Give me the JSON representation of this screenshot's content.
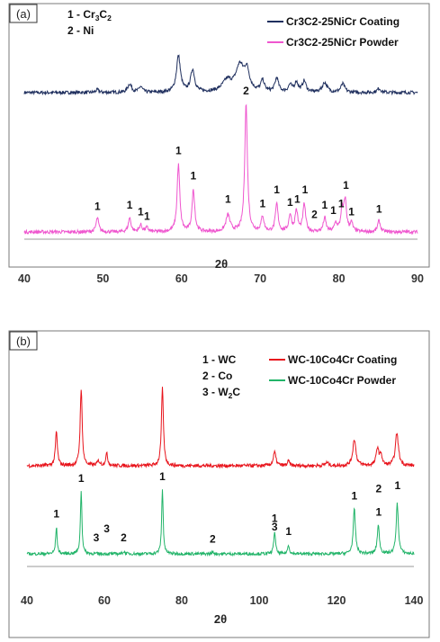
{
  "chart_data": [
    {
      "type": "line",
      "panel_label": "(a)",
      "xlabel": "2θ",
      "xlim": [
        40,
        90
      ],
      "xticks": [
        "40",
        "50",
        "60",
        "70",
        "80",
        "90"
      ],
      "legend_position": "top-right",
      "grid": false,
      "y_axis_visible": false,
      "key": [
        {
          "code": "1 - ",
          "main": "Cr",
          "sub1": "3",
          "mid": "C",
          "sub2": "2"
        },
        {
          "code": "2 - ",
          "main": "Ni",
          "sub1": "",
          "mid": "",
          "sub2": ""
        }
      ],
      "series": [
        {
          "name": "Cr3C2-25NiCr Coating",
          "color": "#1f2f5e",
          "baseline": 0.0,
          "noise": 0.012,
          "peaks": [
            {
              "x": 49.3,
              "h": 0.02,
              "w": 0.35
            },
            {
              "x": 53.4,
              "h": 0.06,
              "w": 0.45
            },
            {
              "x": 54.8,
              "h": 0.04,
              "w": 0.4
            },
            {
              "x": 59.6,
              "h": 0.26,
              "w": 0.45
            },
            {
              "x": 61.4,
              "h": 0.16,
              "w": 0.45
            },
            {
              "x": 65.8,
              "h": 0.08,
              "w": 1.1
            },
            {
              "x": 67.4,
              "h": 0.18,
              "w": 0.9
            },
            {
              "x": 68.3,
              "h": 0.14,
              "w": 0.6
            },
            {
              "x": 70.3,
              "h": 0.08,
              "w": 0.4
            },
            {
              "x": 72.1,
              "h": 0.1,
              "w": 0.4
            },
            {
              "x": 73.8,
              "h": 0.05,
              "w": 0.4
            },
            {
              "x": 74.6,
              "h": 0.07,
              "w": 0.4
            },
            {
              "x": 75.6,
              "h": 0.08,
              "w": 0.4
            },
            {
              "x": 78.2,
              "h": 0.07,
              "w": 0.55
            },
            {
              "x": 80.5,
              "h": 0.06,
              "w": 0.45
            },
            {
              "x": 85.1,
              "h": 0.03,
              "w": 0.4
            }
          ]
        },
        {
          "name": "Cr3C2-25NiCr Powder",
          "color": "#ef56cf",
          "baseline": 0.0,
          "noise": 0.012,
          "peaks": [
            {
              "x": 49.3,
              "h": 0.1,
              "w": 0.3
            },
            {
              "x": 53.4,
              "h": 0.1,
              "w": 0.3
            },
            {
              "x": 54.8,
              "h": 0.05,
              "w": 0.3
            },
            {
              "x": 55.6,
              "h": 0.03,
              "w": 0.3
            },
            {
              "x": 59.6,
              "h": 0.48,
              "w": 0.3
            },
            {
              "x": 61.5,
              "h": 0.3,
              "w": 0.3
            },
            {
              "x": 65.9,
              "h": 0.12,
              "w": 0.45
            },
            {
              "x": 68.2,
              "h": 0.92,
              "w": 0.3
            },
            {
              "x": 70.3,
              "h": 0.11,
              "w": 0.3
            },
            {
              "x": 72.1,
              "h": 0.2,
              "w": 0.3
            },
            {
              "x": 73.8,
              "h": 0.12,
              "w": 0.3
            },
            {
              "x": 74.6,
              "h": 0.15,
              "w": 0.3
            },
            {
              "x": 75.6,
              "h": 0.2,
              "w": 0.3
            },
            {
              "x": 78.2,
              "h": 0.1,
              "w": 0.3
            },
            {
              "x": 79.6,
              "h": 0.06,
              "w": 0.3
            },
            {
              "x": 80.4,
              "h": 0.14,
              "w": 0.3
            },
            {
              "x": 80.8,
              "h": 0.22,
              "w": 0.3
            },
            {
              "x": 81.6,
              "h": 0.06,
              "w": 0.3
            },
            {
              "x": 85.1,
              "h": 0.08,
              "w": 0.3
            }
          ]
        }
      ],
      "peak_labels": [
        {
          "x": 49.3,
          "text": "1",
          "pos": 0.12
        },
        {
          "x": 53.4,
          "text": "1",
          "pos": 0.13
        },
        {
          "x": 54.8,
          "text": "1",
          "pos": 0.08
        },
        {
          "x": 55.6,
          "text": "1",
          "pos": 0.05
        },
        {
          "x": 59.6,
          "text": "1",
          "pos": 0.52
        },
        {
          "x": 61.5,
          "text": "1",
          "pos": 0.34
        },
        {
          "x": 65.9,
          "text": "1",
          "pos": 0.17
        },
        {
          "x": 68.2,
          "text": "2",
          "pos": 0.95
        },
        {
          "x": 70.3,
          "text": "1",
          "pos": 0.14
        },
        {
          "x": 72.1,
          "text": "1",
          "pos": 0.24
        },
        {
          "x": 73.8,
          "text": "1",
          "pos": 0.15
        },
        {
          "x": 74.7,
          "text": "1",
          "pos": 0.17
        },
        {
          "x": 75.7,
          "text": "1",
          "pos": 0.24
        },
        {
          "x": 76.9,
          "text": "2",
          "pos": 0.06
        },
        {
          "x": 78.2,
          "text": "1",
          "pos": 0.13
        },
        {
          "x": 79.3,
          "text": "1",
          "pos": 0.09
        },
        {
          "x": 80.3,
          "text": "1",
          "pos": 0.14
        },
        {
          "x": 80.9,
          "text": "1",
          "pos": 0.27
        },
        {
          "x": 81.6,
          "text": "1",
          "pos": 0.08
        },
        {
          "x": 85.1,
          "text": "1",
          "pos": 0.1
        }
      ]
    },
    {
      "type": "line",
      "panel_label": "(b)",
      "xlabel": "2θ",
      "xlim": [
        40,
        140
      ],
      "xticks": [
        "40",
        "60",
        "80",
        "100",
        "120",
        "140"
      ],
      "legend_position": "top-right",
      "grid": false,
      "y_axis_visible": false,
      "key": [
        {
          "code": "1 - ",
          "main": "WC",
          "sub1": "",
          "mid": "",
          "sub2": ""
        },
        {
          "code": "2 - ",
          "main": "Co",
          "sub1": "",
          "mid": "",
          "sub2": ""
        },
        {
          "code": "3 - ",
          "main": "W",
          "sub1": "2",
          "mid": "C",
          "sub2": ""
        }
      ],
      "series": [
        {
          "name": "WC-10Co4Cr Coating",
          "color": "#e8141c",
          "baseline": 0.0,
          "noise": 0.012,
          "peaks": [
            {
              "x": 47.6,
              "h": 0.23,
              "w": 0.45
            },
            {
              "x": 54.0,
              "h": 0.52,
              "w": 0.45
            },
            {
              "x": 58.5,
              "h": 0.03,
              "w": 0.6
            },
            {
              "x": 60.6,
              "h": 0.08,
              "w": 0.5
            },
            {
              "x": 75.0,
              "h": 0.52,
              "w": 0.45
            },
            {
              "x": 104.0,
              "h": 0.09,
              "w": 0.6
            },
            {
              "x": 107.6,
              "h": 0.03,
              "w": 0.5
            },
            {
              "x": 117.5,
              "h": 0.02,
              "w": 0.8
            },
            {
              "x": 124.6,
              "h": 0.18,
              "w": 0.7
            },
            {
              "x": 130.6,
              "h": 0.12,
              "w": 0.6
            },
            {
              "x": 131.5,
              "h": 0.07,
              "w": 0.5
            },
            {
              "x": 135.6,
              "h": 0.22,
              "w": 0.7
            }
          ]
        },
        {
          "name": "WC-10Co4Cr Powder",
          "color": "#22b469",
          "baseline": 0.0,
          "noise": 0.01,
          "peaks": [
            {
              "x": 47.6,
              "h": 0.18,
              "w": 0.35
            },
            {
              "x": 54.0,
              "h": 0.42,
              "w": 0.35
            },
            {
              "x": 65.0,
              "h": 0.015,
              "w": 0.5
            },
            {
              "x": 75.0,
              "h": 0.43,
              "w": 0.35
            },
            {
              "x": 88.0,
              "h": 0.01,
              "w": 0.5
            },
            {
              "x": 104.0,
              "h": 0.15,
              "w": 0.4
            },
            {
              "x": 107.6,
              "h": 0.06,
              "w": 0.4
            },
            {
              "x": 124.6,
              "h": 0.3,
              "w": 0.5
            },
            {
              "x": 130.8,
              "h": 0.19,
              "w": 0.5
            },
            {
              "x": 135.7,
              "h": 0.34,
              "w": 0.5
            }
          ]
        }
      ],
      "peak_labels": [
        {
          "x": 47.6,
          "text": "1",
          "pos": 0.21
        },
        {
          "x": 54.0,
          "text": "1",
          "pos": 0.45
        },
        {
          "x": 57.9,
          "text": "3",
          "pos": 0.05
        },
        {
          "x": 60.6,
          "text": "3",
          "pos": 0.11
        },
        {
          "x": 65.0,
          "text": "2",
          "pos": 0.05
        },
        {
          "x": 75.0,
          "text": "1",
          "pos": 0.46
        },
        {
          "x": 88.0,
          "text": "2",
          "pos": 0.04
        },
        {
          "x": 104.0,
          "text": "3",
          "pos": 0.12
        },
        {
          "x": 104.0,
          "text": "1",
          "pos": 0.18
        },
        {
          "x": 107.6,
          "text": "1",
          "pos": 0.09
        },
        {
          "x": 124.6,
          "text": "1",
          "pos": 0.33
        },
        {
          "x": 130.9,
          "text": "1",
          "pos": 0.22
        },
        {
          "x": 130.9,
          "text": "2",
          "pos": 0.38
        },
        {
          "x": 135.8,
          "text": "1",
          "pos": 0.4
        }
      ]
    }
  ]
}
